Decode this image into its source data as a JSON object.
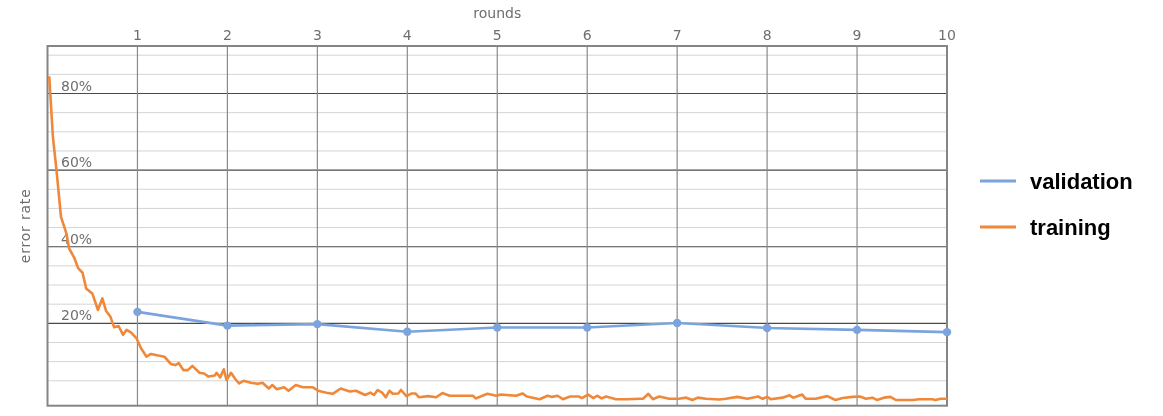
{
  "chart_data": {
    "type": "line",
    "xlabel": "rounds",
    "ylabel": "error rate",
    "xlim": [
      0,
      10
    ],
    "ylim": [
      -1.5,
      92.4
    ],
    "xticks": [
      1,
      2,
      3,
      4,
      5,
      6,
      7,
      8,
      9,
      10
    ],
    "yticks": [
      {
        "value": 5,
        "label": null
      },
      {
        "value": 10,
        "label": null
      },
      {
        "value": 15,
        "label": null
      },
      {
        "value": 20,
        "label": "20%"
      },
      {
        "value": 25,
        "label": null
      },
      {
        "value": 30,
        "label": null
      },
      {
        "value": 35,
        "label": null
      },
      {
        "value": 40,
        "label": "40%"
      },
      {
        "value": 45,
        "label": null
      },
      {
        "value": 50,
        "label": null
      },
      {
        "value": 55,
        "label": null
      },
      {
        "value": 60,
        "label": "60%"
      },
      {
        "value": 65,
        "label": null
      },
      {
        "value": 70,
        "label": null
      },
      {
        "value": 75,
        "label": null
      },
      {
        "value": 80,
        "label": "80%"
      },
      {
        "value": 85,
        "label": null
      },
      {
        "value": 90,
        "label": null
      }
    ],
    "grid": true,
    "legend": "right",
    "series": [
      {
        "name": "validation",
        "color": "#7ba4dd",
        "marker": "circle",
        "x": [
          1,
          2,
          3,
          4,
          5,
          6,
          7,
          8,
          9,
          10
        ],
        "values": [
          23.0,
          19.4,
          19.8,
          17.8,
          18.9,
          18.9,
          20.1,
          18.8,
          18.3,
          17.7
        ]
      },
      {
        "name": "training",
        "color": "#f0883a",
        "x": [
          0.02,
          0.06,
          0.1,
          0.15,
          0.21,
          0.24,
          0.3,
          0.34,
          0.39,
          0.43,
          0.5,
          0.56,
          0.61,
          0.65,
          0.7,
          0.74,
          0.79,
          0.84,
          0.88,
          0.93,
          0.99,
          1.04,
          1.1,
          1.15,
          1.23,
          1.3,
          1.37,
          1.42,
          1.46,
          1.51,
          1.56,
          1.61,
          1.69,
          1.74,
          1.79,
          1.86,
          1.88,
          1.92,
          1.96,
          1.99,
          2.04,
          2.09,
          2.13,
          2.18,
          2.26,
          2.34,
          2.39,
          2.46,
          2.5,
          2.55,
          2.63,
          2.68,
          2.76,
          2.84,
          2.95,
          3.01,
          3.1,
          3.17,
          3.26,
          3.36,
          3.43,
          3.53,
          3.59,
          3.63,
          3.67,
          3.72,
          3.76,
          3.8,
          3.84,
          3.9,
          3.93,
          3.99,
          4.05,
          4.09,
          4.13,
          4.23,
          4.32,
          4.39,
          4.47,
          4.73,
          4.76,
          4.89,
          4.99,
          5.04,
          5.21,
          5.28,
          5.33,
          5.47,
          5.56,
          5.61,
          5.67,
          5.73,
          5.81,
          5.91,
          5.94,
          6.01,
          6.07,
          6.11,
          6.16,
          6.21,
          6.32,
          6.45,
          6.58,
          6.62,
          6.68,
          6.73,
          6.8,
          6.91,
          7.02,
          7.1,
          7.17,
          7.23,
          7.32,
          7.47,
          7.54,
          7.67,
          7.78,
          7.9,
          7.95,
          8.0,
          8.04,
          8.17,
          8.25,
          8.29,
          8.39,
          8.43,
          8.54,
          8.67,
          8.76,
          8.84,
          8.95,
          9.03,
          9.1,
          9.17,
          9.22,
          9.3,
          9.37,
          9.43,
          9.54,
          9.62,
          9.69,
          9.84,
          9.87,
          9.93,
          9.99
        ],
        "values": [
          84.2,
          68.7,
          60.0,
          47.8,
          43.5,
          39.6,
          37.0,
          34.4,
          33.2,
          29.1,
          27.7,
          23.5,
          26.5,
          23.3,
          21.7,
          19.0,
          19.3,
          17.0,
          18.3,
          17.6,
          16.1,
          13.5,
          11.3,
          12.0,
          11.6,
          11.3,
          9.4,
          9.1,
          9.6,
          7.8,
          7.8,
          8.9,
          7.1,
          6.9,
          6.1,
          6.4,
          7.1,
          5.9,
          8.0,
          5.2,
          7.1,
          5.4,
          4.3,
          5.0,
          4.5,
          4.2,
          4.5,
          3.0,
          3.9,
          2.8,
          3.3,
          2.4,
          3.9,
          3.3,
          3.3,
          2.4,
          1.9,
          1.6,
          3.0,
          2.2,
          2.4,
          1.3,
          1.9,
          1.3,
          2.6,
          1.9,
          0.7,
          2.4,
          1.6,
          1.7,
          2.6,
          1.0,
          1.7,
          1.7,
          0.7,
          1.0,
          0.7,
          1.8,
          1.1,
          1.1,
          0.4,
          1.6,
          1.1,
          1.4,
          1.1,
          1.7,
          0.9,
          0.2,
          1.1,
          0.8,
          1.1,
          0.2,
          0.9,
          0.9,
          0.5,
          1.4,
          0.5,
          1.1,
          0.4,
          0.9,
          0.2,
          0.2,
          0.3,
          0.3,
          1.6,
          0.2,
          0.9,
          0.3,
          0.3,
          0.6,
          0.0,
          0.6,
          0.3,
          0.1,
          0.3,
          0.8,
          0.3,
          0.9,
          0.3,
          0.8,
          0.2,
          0.6,
          1.2,
          0.6,
          1.4,
          0.3,
          0.3,
          1.0,
          0.0,
          0.5,
          0.8,
          0.9,
          0.3,
          0.6,
          0.0,
          0.6,
          0.8,
          0.0,
          0.0,
          0.0,
          0.2,
          0.2,
          0.0,
          0.3,
          0.3
        ]
      }
    ]
  }
}
